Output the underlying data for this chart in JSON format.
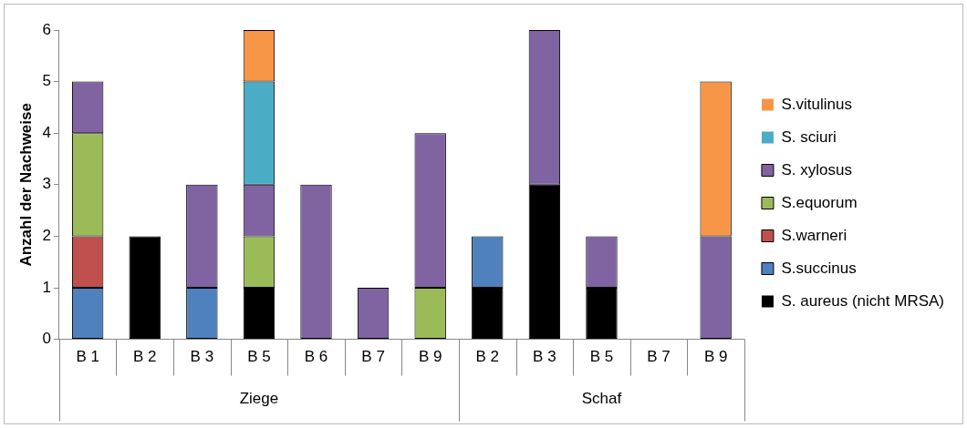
{
  "chart_data": {
    "type": "bar",
    "stacked": true,
    "ylabel": "Anzahl der Nachweise",
    "categories": [
      "B 1",
      "B 2",
      "B 3",
      "B 5",
      "B 6",
      "B 7",
      "B 9",
      "B 2",
      "B 3",
      "B 5",
      "B 7",
      "B 9"
    ],
    "series": [
      {
        "name": "S. aureus (nicht MRSA)",
        "color": "#000000",
        "values": [
          0,
          2,
          0,
          1,
          0,
          0,
          0,
          1,
          3,
          1,
          0,
          0
        ]
      },
      {
        "name": "S.succinus",
        "color": "#4f81bd",
        "values": [
          1,
          0,
          1,
          0,
          0,
          0,
          0,
          1,
          0,
          0,
          0,
          0
        ]
      },
      {
        "name": "S.warneri",
        "color": "#c0504d",
        "values": [
          1,
          0,
          0,
          0,
          0,
          0,
          0,
          0,
          0,
          0,
          0,
          0
        ]
      },
      {
        "name": "S.equorum",
        "color": "#9bbb59",
        "values": [
          2,
          0,
          0,
          1,
          0,
          0,
          1,
          0,
          0,
          0,
          0,
          0
        ]
      },
      {
        "name": "S. xylosus",
        "color": "#8064a2",
        "values": [
          1,
          0,
          2,
          1,
          3,
          1,
          3,
          0,
          3,
          1,
          0,
          2
        ]
      },
      {
        "name": "S. sciuri",
        "color": "#4bacc6",
        "values": [
          0,
          0,
          0,
          2,
          0,
          0,
          0,
          0,
          0,
          0,
          0,
          0
        ]
      },
      {
        "name": "S.vitulinus",
        "color": "#f79646",
        "values": [
          0,
          0,
          0,
          1,
          0,
          0,
          0,
          0,
          0,
          0,
          0,
          3
        ]
      }
    ],
    "ylim": [
      0,
      6
    ],
    "yticks": [
      0,
      1,
      2,
      3,
      4,
      5,
      6
    ],
    "grid": false,
    "legend": "right",
    "annotations": [
      "Ziege",
      "Schaf"
    ]
  }
}
